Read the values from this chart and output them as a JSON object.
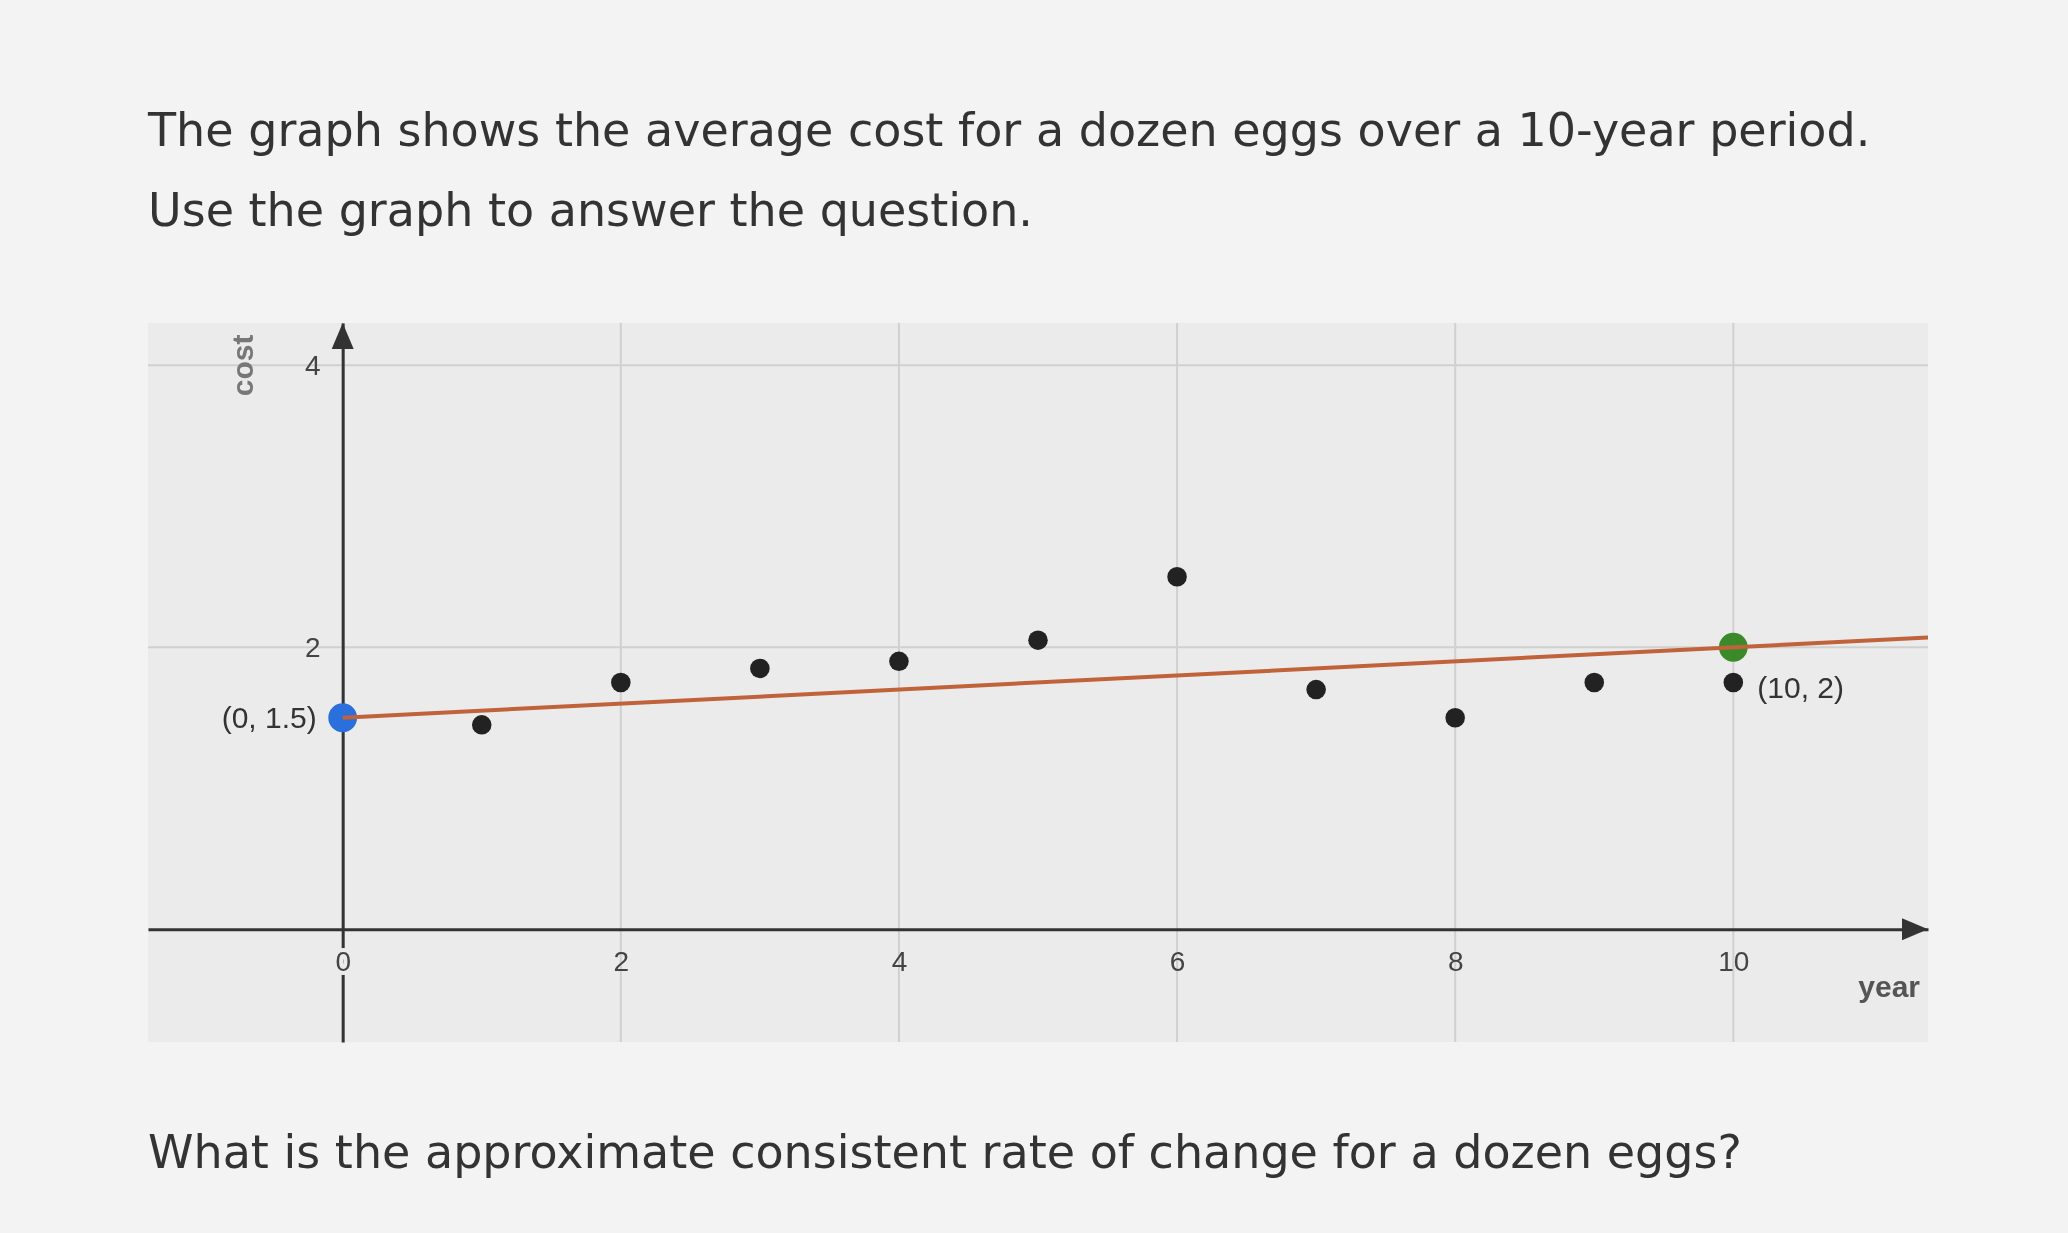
{
  "chart_data": {
    "type": "scatter",
    "title": "The graph shows the average cost for a dozen eggs over a 10-year period. Use the graph to answer the question.",
    "xlabel": "year",
    "ylabel": "cost",
    "xlim": [
      -1.4,
      11.4
    ],
    "ylim": [
      -0.8,
      4.3
    ],
    "xticks": [
      0,
      2,
      4,
      6,
      8,
      10
    ],
    "yticks": [
      2,
      4
    ],
    "grid": true,
    "marker": "circle",
    "series": [
      {
        "color": "#222222",
        "x": [
          1,
          2,
          3,
          4,
          5,
          6,
          7,
          8,
          9,
          10
        ],
        "values": [
          1.45,
          1.75,
          1.85,
          1.9,
          2.05,
          2.5,
          1.7,
          1.5,
          1.75,
          1.75
        ]
      },
      {
        "type": "scatter",
        "color": "#2a6fdb",
        "x": [
          0
        ],
        "values": [
          1.5
        ]
      },
      {
        "type": "scatter",
        "color": "#3a8a2a",
        "x": [
          10
        ],
        "values": [
          2
        ]
      },
      {
        "type": "line",
        "color": "#c0623a",
        "marker": "none",
        "x": [
          0,
          11.4
        ],
        "values": [
          1.5,
          2.07
        ]
      }
    ],
    "annotations": [
      {
        "text": "(0, 1.5)",
        "x": 0,
        "y": 1.5
      },
      {
        "text": "(10, 2)",
        "x": 10,
        "y": 2
      },
      "What is the approximate consistent rate of change for a dozen eggs?"
    ]
  }
}
